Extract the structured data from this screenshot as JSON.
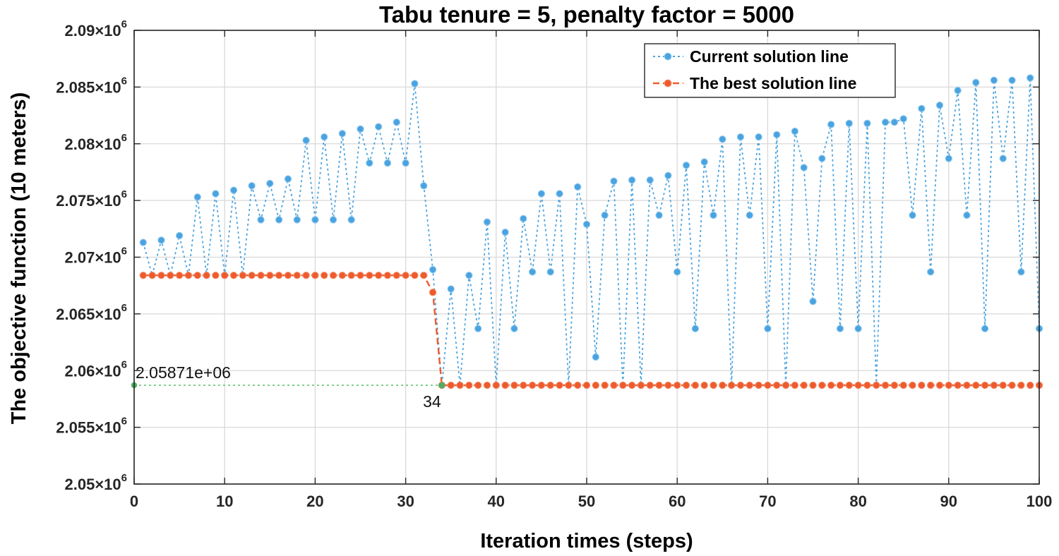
{
  "chart_data": {
    "type": "line",
    "title": "Tabu tenure = 5, penalty factor = 5000",
    "xlabel": "Iteration times (steps)",
    "ylabel": "The objective function (10 meters)",
    "xlim": [
      0,
      100
    ],
    "ylim": [
      2050000,
      2090000
    ],
    "x_ticks": [
      0,
      10,
      20,
      30,
      40,
      50,
      60,
      70,
      80,
      90,
      100
    ],
    "x_tick_labels": [
      "0",
      "10",
      "20",
      "30",
      "40",
      "50",
      "60",
      "70",
      "80",
      "90",
      "100"
    ],
    "y_ticks": [
      2050000,
      2055000,
      2060000,
      2065000,
      2070000,
      2075000,
      2080000,
      2085000,
      2090000
    ],
    "y_tick_labels": [
      {
        "mantissa": "2.05",
        "exp": "6"
      },
      {
        "mantissa": "2.055",
        "exp": "6"
      },
      {
        "mantissa": "2.06",
        "exp": "6"
      },
      {
        "mantissa": "2.065",
        "exp": "6"
      },
      {
        "mantissa": "2.07",
        "exp": "6"
      },
      {
        "mantissa": "2.075",
        "exp": "6"
      },
      {
        "mantissa": "2.08",
        "exp": "6"
      },
      {
        "mantissa": "2.085",
        "exp": "6"
      },
      {
        "mantissa": "2.09",
        "exp": "6"
      }
    ],
    "y_tick_multiplier": "×10",
    "grid": true,
    "legend_position": "top-right",
    "series": [
      {
        "name": "Current solution line",
        "color": "#4aa3df",
        "style": "dotted",
        "marker": "circle",
        "x": [
          1,
          2,
          3,
          4,
          5,
          6,
          7,
          8,
          9,
          10,
          11,
          12,
          13,
          14,
          15,
          16,
          17,
          18,
          19,
          20,
          21,
          22,
          23,
          24,
          25,
          26,
          27,
          28,
          29,
          30,
          31,
          32,
          33,
          34,
          35,
          36,
          37,
          38,
          39,
          40,
          41,
          42,
          43,
          44,
          45,
          46,
          47,
          48,
          49,
          50,
          51,
          52,
          53,
          54,
          55,
          56,
          57,
          58,
          59,
          60,
          61,
          62,
          63,
          64,
          65,
          66,
          67,
          68,
          69,
          70,
          71,
          72,
          73,
          74,
          75,
          76,
          77,
          78,
          79,
          80,
          81,
          82,
          83,
          84,
          85,
          86,
          87,
          88,
          89,
          90,
          91,
          92,
          93,
          94,
          95,
          96,
          97,
          98,
          99,
          100
        ],
        "y": [
          2071300,
          2068400,
          2071500,
          2068400,
          2071900,
          2068400,
          2075300,
          2068400,
          2075600,
          2068400,
          2075900,
          2068400,
          2076300,
          2073300,
          2076500,
          2073300,
          2076900,
          2073300,
          2080300,
          2073300,
          2080600,
          2073300,
          2080900,
          2073300,
          2081300,
          2078300,
          2081500,
          2078300,
          2081900,
          2078300,
          2085300,
          2076300,
          2068900,
          2058710,
          2067200,
          2058710,
          2068400,
          2063700,
          2073100,
          2058710,
          2072200,
          2063700,
          2073400,
          2068700,
          2075600,
          2068700,
          2075600,
          2058710,
          2076200,
          2072900,
          2061200,
          2073700,
          2076700,
          2058710,
          2076800,
          2058710,
          2076800,
          2073700,
          2077200,
          2068700,
          2078100,
          2063700,
          2078400,
          2073700,
          2080400,
          2058710,
          2080600,
          2073700,
          2080600,
          2063700,
          2080800,
          2058710,
          2081100,
          2077900,
          2066100,
          2078700,
          2081700,
          2063700,
          2081800,
          2063700,
          2081800,
          2058710,
          2081900,
          2081900,
          2082200,
          2073700,
          2083100,
          2068700,
          2083400,
          2078700,
          2084700,
          2073700,
          2085400,
          2063700,
          2085600,
          2078700,
          2085600,
          2068700,
          2085800,
          2063700
        ]
      },
      {
        "name": "The best solution line",
        "color": "#ee5a2c",
        "style": "dashed",
        "marker": "circle",
        "x": [
          1,
          2,
          3,
          4,
          5,
          6,
          7,
          8,
          9,
          10,
          11,
          12,
          13,
          14,
          15,
          16,
          17,
          18,
          19,
          20,
          21,
          22,
          23,
          24,
          25,
          26,
          27,
          28,
          29,
          30,
          31,
          32,
          33,
          34,
          35,
          36,
          37,
          38,
          39,
          40,
          41,
          42,
          43,
          44,
          45,
          46,
          47,
          48,
          49,
          50,
          51,
          52,
          53,
          54,
          55,
          56,
          57,
          58,
          59,
          60,
          61,
          62,
          63,
          64,
          65,
          66,
          67,
          68,
          69,
          70,
          71,
          72,
          73,
          74,
          75,
          76,
          77,
          78,
          79,
          80,
          81,
          82,
          83,
          84,
          85,
          86,
          87,
          88,
          89,
          90,
          91,
          92,
          93,
          94,
          95,
          96,
          97,
          98,
          99,
          100
        ],
        "y": [
          2068400,
          2068400,
          2068400,
          2068400,
          2068400,
          2068400,
          2068400,
          2068400,
          2068400,
          2068400,
          2068400,
          2068400,
          2068400,
          2068400,
          2068400,
          2068400,
          2068400,
          2068400,
          2068400,
          2068400,
          2068400,
          2068400,
          2068400,
          2068400,
          2068400,
          2068400,
          2068400,
          2068400,
          2068400,
          2068400,
          2068400,
          2068400,
          2066900,
          2058710,
          2058710,
          2058710,
          2058710,
          2058710,
          2058710,
          2058710,
          2058710,
          2058710,
          2058710,
          2058710,
          2058710,
          2058710,
          2058710,
          2058710,
          2058710,
          2058710,
          2058710,
          2058710,
          2058710,
          2058710,
          2058710,
          2058710,
          2058710,
          2058710,
          2058710,
          2058710,
          2058710,
          2058710,
          2058710,
          2058710,
          2058710,
          2058710,
          2058710,
          2058710,
          2058710,
          2058710,
          2058710,
          2058710,
          2058710,
          2058710,
          2058710,
          2058710,
          2058710,
          2058710,
          2058710,
          2058710,
          2058710,
          2058710,
          2058710,
          2058710,
          2058710,
          2058710,
          2058710,
          2058710,
          2058710,
          2058710,
          2058710,
          2058710,
          2058710,
          2058710,
          2058710,
          2058710,
          2058710,
          2058710,
          2058710,
          2058710
        ]
      }
    ],
    "reference_line": {
      "color": "#7fcf8f",
      "y": 2058710,
      "x_from": 0,
      "x_to": 34
    },
    "annotations": [
      {
        "text": "2.05871e+06",
        "x": 0,
        "y": 2058710
      },
      {
        "text": "34",
        "x": 34,
        "y": 2058710
      }
    ]
  }
}
